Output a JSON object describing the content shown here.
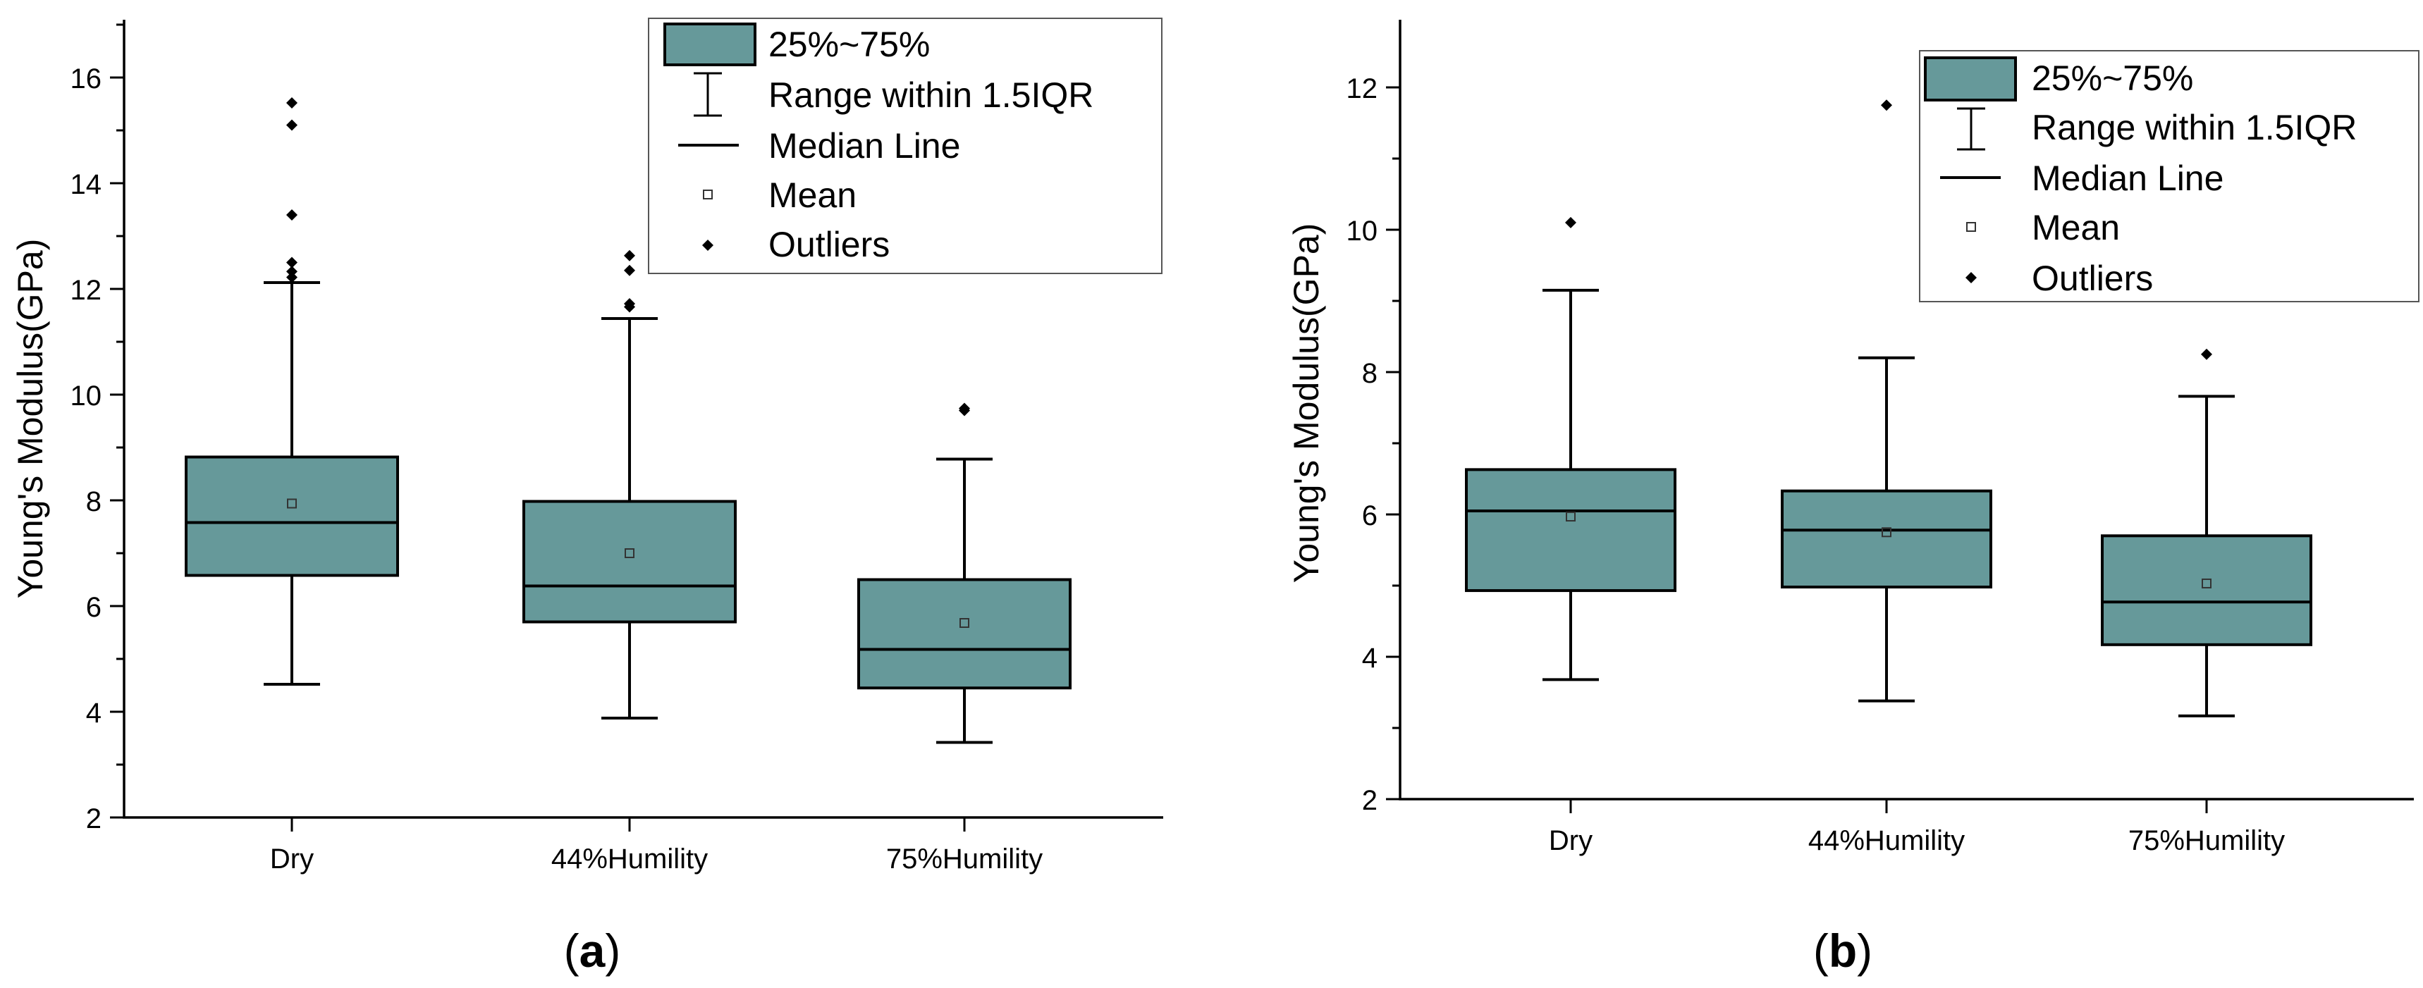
{
  "chart_data": [
    {
      "type": "box",
      "panel_label_open": "(",
      "panel_label": "a",
      "panel_label_close": ")",
      "ylabel": "Young's Modulus(GPa)",
      "ylim": [
        2,
        17
      ],
      "yticks": [
        2,
        4,
        6,
        8,
        10,
        12,
        14,
        16
      ],
      "box_color": "#66999a",
      "categories": [
        "Dry",
        "44%Humility",
        "75%Humility"
      ],
      "boxes": [
        {
          "name": "Dry",
          "whisker_low": 4.52,
          "q1": 6.58,
          "median": 7.58,
          "q3": 8.82,
          "whisker_high": 12.12,
          "mean": 7.94,
          "outliers": [
            12.22,
            12.33,
            12.5,
            13.4,
            15.1,
            15.52
          ]
        },
        {
          "name": "44%Humility",
          "whisker_low": 3.88,
          "q1": 5.7,
          "median": 6.38,
          "q3": 7.98,
          "whisker_high": 11.44,
          "mean": 7.0,
          "outliers": [
            11.66,
            11.72,
            12.35,
            12.63
          ]
        },
        {
          "name": "75%Humility",
          "whisker_low": 3.42,
          "q1": 4.45,
          "median": 5.18,
          "q3": 6.5,
          "whisker_high": 8.78,
          "mean": 5.68,
          "outliers": [
            9.7,
            9.74
          ]
        }
      ],
      "legend": {
        "position": "top-right",
        "entries": [
          "25%~75%",
          "Range within 1.5IQR",
          "Median Line",
          "Mean",
          "Outliers"
        ]
      }
    },
    {
      "type": "box",
      "panel_label_open": "(",
      "panel_label": "b",
      "panel_label_close": ")",
      "ylabel": "Young's Modulus(GPa)",
      "ylim": [
        2,
        13
      ],
      "yticks": [
        2,
        4,
        6,
        8,
        10,
        12
      ],
      "box_color": "#66999a",
      "categories": [
        "Dry",
        "44%Humility",
        "75%Humility"
      ],
      "boxes": [
        {
          "name": "Dry",
          "whisker_low": 3.68,
          "q1": 4.93,
          "median": 6.05,
          "q3": 6.63,
          "whisker_high": 9.15,
          "mean": 5.97,
          "outliers": [
            10.1
          ]
        },
        {
          "name": "44%Humility",
          "whisker_low": 3.38,
          "q1": 4.98,
          "median": 5.78,
          "q3": 6.33,
          "whisker_high": 8.2,
          "mean": 5.75,
          "outliers": [
            11.75
          ]
        },
        {
          "name": "75%Humility",
          "whisker_low": 3.17,
          "q1": 4.17,
          "median": 4.77,
          "q3": 5.7,
          "whisker_high": 7.66,
          "mean": 5.03,
          "outliers": [
            8.25
          ]
        }
      ],
      "legend": {
        "position": "top-right",
        "entries": [
          "25%~75%",
          "Range within 1.5IQR",
          "Median Line",
          "Mean",
          "Outliers"
        ]
      }
    }
  ]
}
